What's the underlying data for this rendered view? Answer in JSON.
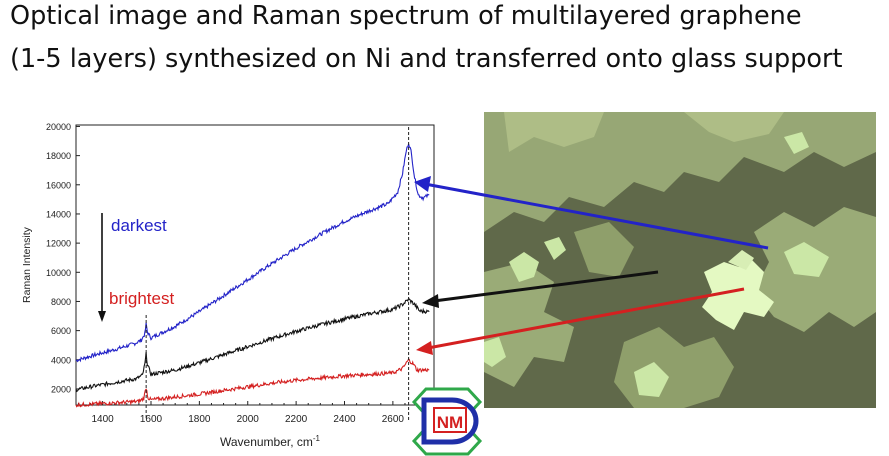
{
  "title_lines": [
    "Optical image and Raman spectrum of multilayered graphene",
    "(1-5 layers) synthesized on Ni and transferred onto glass support"
  ],
  "chart_data": {
    "type": "line",
    "xlabel": "Wavenumber, cm",
    "xlabel_superscript": "-1",
    "ylabel": "Raman Intensity",
    "xlim": [
      1290,
      2770
    ],
    "ylim": [
      900,
      20100
    ],
    "x_ticks": [
      1400,
      1600,
      1800,
      2000,
      2200,
      2400,
      2600
    ],
    "y_ticks": [
      2000,
      4000,
      6000,
      8000,
      10000,
      12000,
      14000,
      16000,
      18000,
      20000
    ],
    "markers": [
      1580,
      2665
    ],
    "annotations": {
      "darkest": "darkest",
      "brightest": "brightest"
    },
    "series": [
      {
        "color": "#2323c8",
        "points": [
          [
            1290,
            3950
          ],
          [
            1350,
            4250
          ],
          [
            1450,
            4700
          ],
          [
            1530,
            5100
          ],
          [
            1560,
            5350
          ],
          [
            1575,
            5800
          ],
          [
            1580,
            6450
          ],
          [
            1585,
            5900
          ],
          [
            1600,
            5500
          ],
          [
            1700,
            6300
          ],
          [
            1800,
            7300
          ],
          [
            1900,
            8400
          ],
          [
            2000,
            9500
          ],
          [
            2100,
            10600
          ],
          [
            2200,
            11650
          ],
          [
            2300,
            12600
          ],
          [
            2400,
            13500
          ],
          [
            2500,
            14200
          ],
          [
            2580,
            14700
          ],
          [
            2620,
            15500
          ],
          [
            2640,
            16800
          ],
          [
            2655,
            18300
          ],
          [
            2665,
            18900
          ],
          [
            2675,
            18300
          ],
          [
            2690,
            16500
          ],
          [
            2705,
            15300
          ],
          [
            2725,
            15100
          ],
          [
            2750,
            15300
          ]
        ]
      },
      {
        "color": "#111111",
        "points": [
          [
            1290,
            1950
          ],
          [
            1350,
            2150
          ],
          [
            1450,
            2450
          ],
          [
            1540,
            2700
          ],
          [
            1565,
            2950
          ],
          [
            1575,
            3700
          ],
          [
            1580,
            4400
          ],
          [
            1585,
            3700
          ],
          [
            1600,
            3000
          ],
          [
            1700,
            3300
          ],
          [
            1800,
            3800
          ],
          [
            1900,
            4350
          ],
          [
            2000,
            4900
          ],
          [
            2100,
            5450
          ],
          [
            2200,
            5950
          ],
          [
            2300,
            6400
          ],
          [
            2400,
            6800
          ],
          [
            2500,
            7150
          ],
          [
            2600,
            7450
          ],
          [
            2640,
            7800
          ],
          [
            2665,
            8150
          ],
          [
            2690,
            7800
          ],
          [
            2710,
            7350
          ],
          [
            2750,
            7300
          ]
        ]
      },
      {
        "color": "#d42020",
        "points": [
          [
            1290,
            900
          ],
          [
            1350,
            950
          ],
          [
            1450,
            1050
          ],
          [
            1550,
            1150
          ],
          [
            1570,
            1350
          ],
          [
            1580,
            2100
          ],
          [
            1588,
            1400
          ],
          [
            1600,
            1250
          ],
          [
            1700,
            1450
          ],
          [
            1800,
            1650
          ],
          [
            1900,
            1900
          ],
          [
            2000,
            2150
          ],
          [
            2100,
            2400
          ],
          [
            2200,
            2600
          ],
          [
            2300,
            2750
          ],
          [
            2400,
            2900
          ],
          [
            2500,
            3000
          ],
          [
            2600,
            3100
          ],
          [
            2640,
            3400
          ],
          [
            2665,
            4000
          ],
          [
            2685,
            3700
          ],
          [
            2700,
            3300
          ],
          [
            2750,
            3300
          ]
        ]
      }
    ]
  },
  "logo": {
    "text": "NM"
  },
  "colors": {
    "blue": "#2323c8",
    "black": "#111111",
    "red": "#d42020",
    "micro_dark": "#5f6a45",
    "micro_mid": "#9aab77",
    "micro_light": "#cbe7a6",
    "micro_bright": "#e4f9c2"
  }
}
